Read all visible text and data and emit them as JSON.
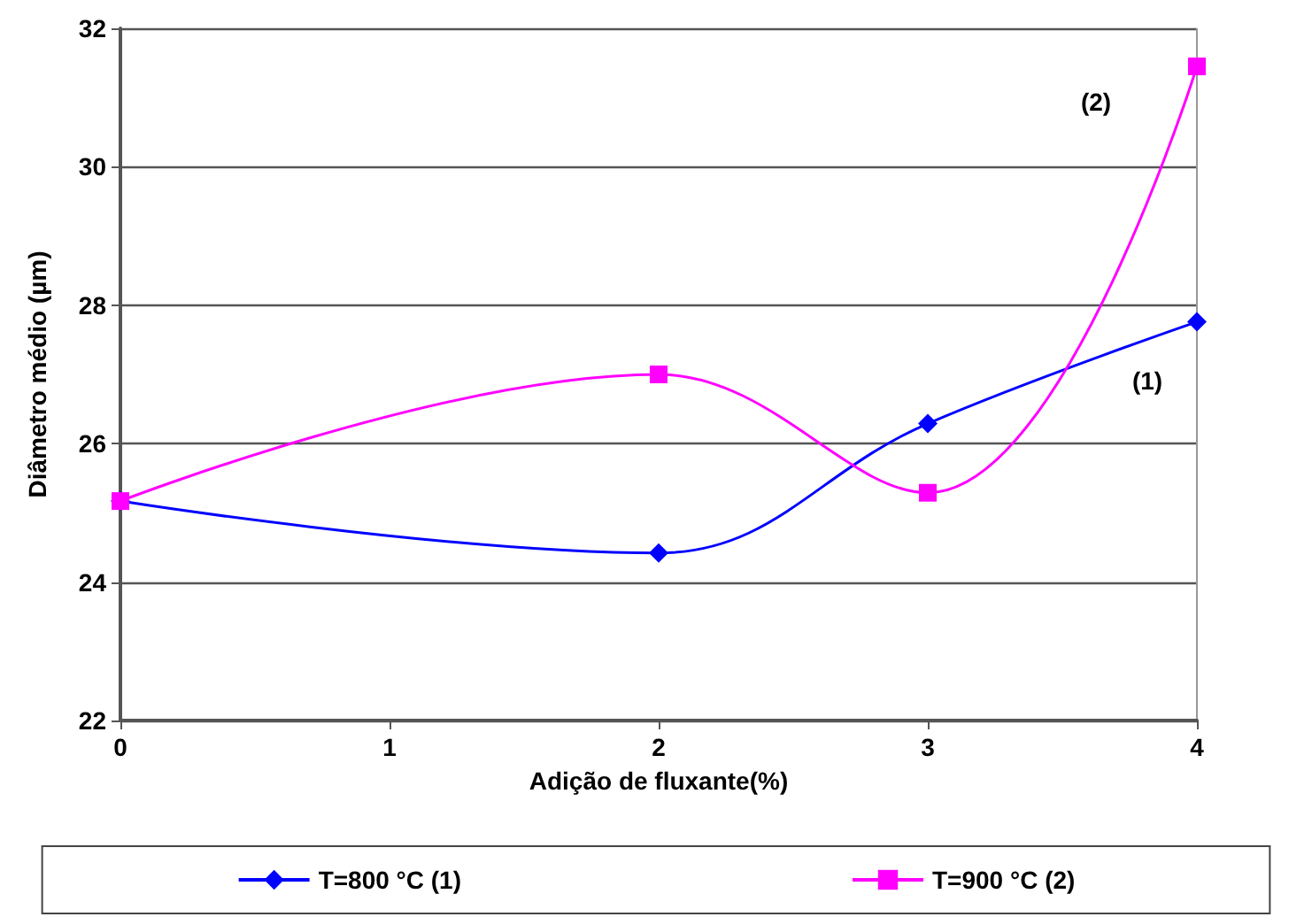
{
  "chart_data": {
    "type": "line",
    "xlabel": "Adição de fluxante(%)",
    "ylabel": "Diâmetro médio (µm)",
    "xlim": [
      0,
      4
    ],
    "xticks": [
      0,
      1,
      2,
      3,
      4
    ],
    "ylim": [
      22,
      32
    ],
    "yticks": [
      22,
      24,
      26,
      28,
      30,
      32
    ],
    "grid": "y",
    "legend": "bottom",
    "series": [
      {
        "name": "T=800 °C (1)",
        "color": "#0000ff",
        "marker": "diamond",
        "x": [
          0,
          2,
          3,
          4
        ],
        "values": [
          25.17,
          24.42,
          26.29,
          27.76
        ]
      },
      {
        "name": "T=900 °C (2)",
        "color": "#ff00ff",
        "marker": "square",
        "x": [
          0,
          2,
          3,
          4
        ],
        "values": [
          25.17,
          27.0,
          25.29,
          31.45
        ]
      }
    ],
    "annotations": [
      "(1)",
      "(2)"
    ]
  }
}
